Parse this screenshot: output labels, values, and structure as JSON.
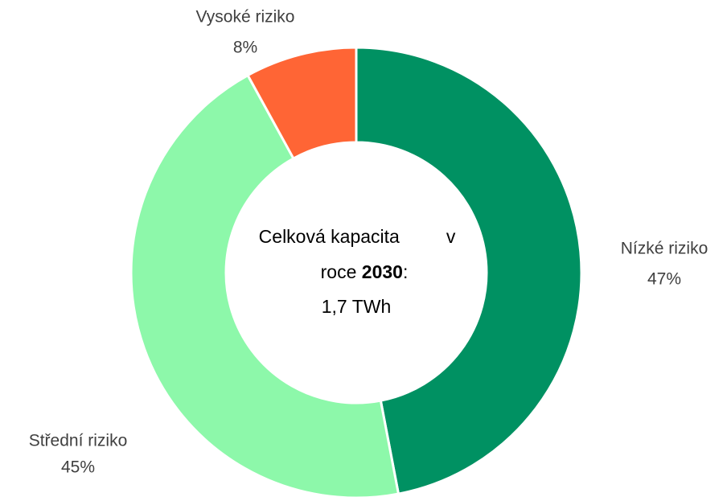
{
  "chart_data": {
    "type": "donut",
    "categories": [
      "Nízké riziko",
      "Střední riziko",
      "Vysoké riziko"
    ],
    "values": [
      47,
      45,
      8
    ],
    "value_labels": [
      "47%",
      "45%",
      "8%"
    ],
    "colors": [
      "#009162",
      "#8df8aa",
      "#ff6535"
    ],
    "center_text": {
      "line1": [
        "Celková kapacita",
        "v"
      ],
      "line2": [
        "roce ",
        "2030",
        ":"
      ],
      "line3": "1,7 TWh"
    }
  }
}
